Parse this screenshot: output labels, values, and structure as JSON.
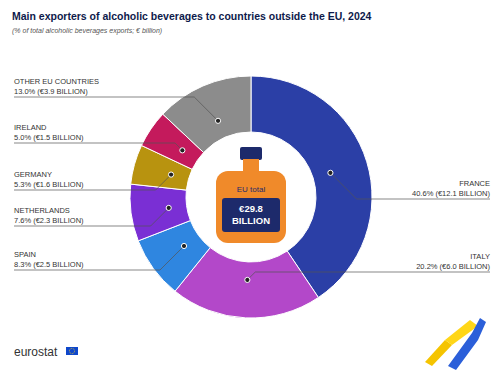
{
  "chart_data": {
    "type": "donut",
    "title": "Main exporters of alcoholic beverages to countries outside the EU, 2024",
    "subtitle": "(% of total alcoholic beverages exports; € billion)",
    "center_label": "EU total",
    "total_label": "€29.8 BILLION",
    "source": "eurostat",
    "categories": [
      "FRANCE",
      "ITALY",
      "SPAIN",
      "NETHERLANDS",
      "GERMANY",
      "IRELAND",
      "OTHER EU COUNTRIES"
    ],
    "values": [
      40.6,
      20.2,
      8.3,
      7.6,
      5.3,
      5.0,
      13.0
    ],
    "value_labels": [
      "40.6% (€12.1 BILLION)",
      "20.2% (€6.0 BILLION)",
      "8.3% (€2.5 BILLION)",
      "7.6% (€2.3 BILLION)",
      "5.3% (€1.6 BILLION)",
      "5.0% (€1.5 BILLION)",
      "13.0% (€3.9 BILLION)"
    ],
    "colors": [
      "#2b3fa6",
      "#b348c9",
      "#2f86e0",
      "#7a2fd4",
      "#b8930f",
      "#c41a5c",
      "#8c8c8c"
    ],
    "data_labels": true
  }
}
